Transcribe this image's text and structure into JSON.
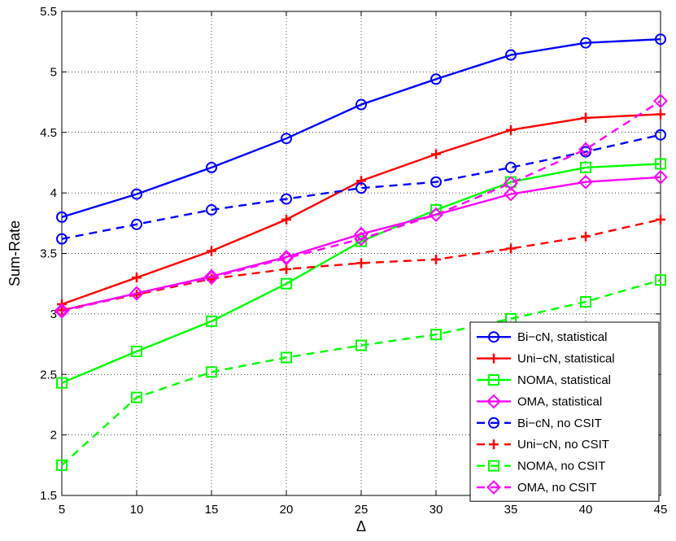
{
  "chart_data": {
    "type": "line",
    "title": "",
    "xlabel": "Δ",
    "ylabel": "Sum-Rate",
    "xlim": [
      5,
      45
    ],
    "ylim": [
      1.5,
      5.5
    ],
    "xticks": [
      5,
      10,
      15,
      20,
      25,
      30,
      35,
      40,
      45
    ],
    "yticks": [
      1.5,
      2,
      2.5,
      3,
      3.5,
      4,
      4.5,
      5,
      5.5
    ],
    "ytick_labels": [
      "1.5",
      "2",
      "2.5",
      "3",
      "3.5",
      "4",
      "4.5",
      "5",
      "5.5"
    ],
    "grid": true,
    "legend_position": "bottom-right",
    "x": [
      5,
      10,
      15,
      20,
      25,
      30,
      35,
      40,
      45
    ],
    "series": [
      {
        "name": "Bi−cN, statistical",
        "color": "#0000ff",
        "marker": "circle",
        "dash": "solid",
        "values": [
          3.8,
          3.99,
          4.21,
          4.45,
          4.73,
          4.94,
          5.14,
          5.24,
          5.27
        ]
      },
      {
        "name": "Uni−cN, statistical",
        "color": "#ff0000",
        "marker": "plus",
        "dash": "solid",
        "values": [
          3.08,
          3.3,
          3.52,
          3.78,
          4.1,
          4.32,
          4.52,
          4.62,
          4.65
        ]
      },
      {
        "name": "NOMA, statistical",
        "color": "#00ff00",
        "marker": "square",
        "dash": "solid",
        "values": [
          2.43,
          2.69,
          2.94,
          3.25,
          3.6,
          3.86,
          4.09,
          4.21,
          4.24
        ]
      },
      {
        "name": "OMA, statistical",
        "color": "#ff00ff",
        "marker": "diamond",
        "dash": "solid",
        "values": [
          3.03,
          3.17,
          3.31,
          3.47,
          3.66,
          3.82,
          3.99,
          4.09,
          4.13
        ]
      },
      {
        "name": "Bi−cN, no CSIT",
        "color": "#0000ff",
        "marker": "circle",
        "dash": "dashed",
        "values": [
          3.62,
          3.74,
          3.86,
          3.95,
          4.04,
          4.09,
          4.21,
          4.34,
          4.48
        ]
      },
      {
        "name": "Uni−cN, no CSIT",
        "color": "#ff0000",
        "marker": "plus",
        "dash": "dashed",
        "values": [
          3.03,
          3.16,
          3.29,
          3.37,
          3.42,
          3.45,
          3.54,
          3.64,
          3.78
        ]
      },
      {
        "name": "NOMA, no CSIT",
        "color": "#00ff00",
        "marker": "square",
        "dash": "dashed",
        "values": [
          1.75,
          2.31,
          2.52,
          2.64,
          2.74,
          2.83,
          2.96,
          3.1,
          3.28
        ]
      },
      {
        "name": "OMA, no CSIT",
        "color": "#ff00ff",
        "marker": "diamond",
        "dash": "dashed",
        "values": [
          3.02,
          3.17,
          3.3,
          3.46,
          3.62,
          3.82,
          4.08,
          4.36,
          4.76
        ]
      }
    ]
  }
}
